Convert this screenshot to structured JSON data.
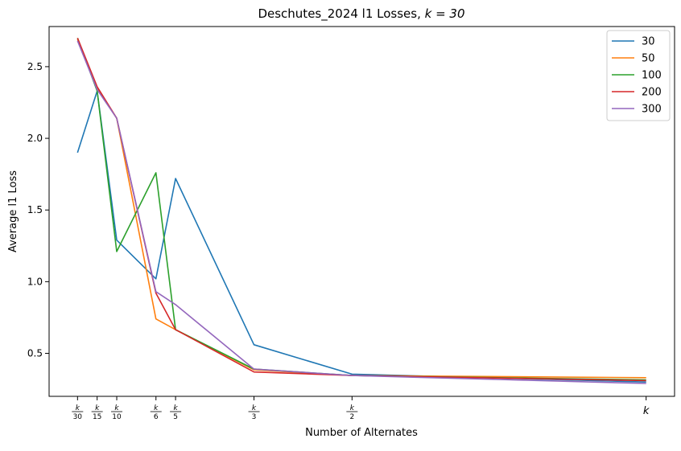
{
  "chart_data": {
    "type": "line",
    "title": "Deschutes_2024 l1 Losses, k = 30",
    "title_prefix": "Deschutes_2024 l1 Losses, ",
    "title_math": "k = 30",
    "xlabel": "Number of Alternates",
    "ylabel": "Average l1 Loss",
    "x_tick_labels": [
      {
        "num": "k",
        "den": "30"
      },
      {
        "num": "k",
        "den": "15"
      },
      {
        "num": "k",
        "den": "10"
      },
      {
        "num": "k",
        "den": "6"
      },
      {
        "num": "k",
        "den": "5"
      },
      {
        "num": "k",
        "den": "3"
      },
      {
        "num": "k",
        "den": "2"
      },
      {
        "num": "k",
        "den": ""
      }
    ],
    "x": [
      1,
      2,
      3,
      5,
      6,
      10,
      15,
      30
    ],
    "xlim": [
      -0.45,
      31.45
    ],
    "ylim": [
      0.2,
      2.78
    ],
    "yticks": [
      0.5,
      1.0,
      1.5,
      2.0,
      2.5
    ],
    "ytick_labels": [
      "0.5",
      "1.0",
      "1.5",
      "2.0",
      "2.5"
    ],
    "grid": false,
    "legend_position": "top-right",
    "series": [
      {
        "name": "30",
        "color": "#1f77b4",
        "values": [
          1.9,
          2.33,
          1.29,
          1.02,
          1.72,
          0.56,
          0.355,
          0.3
        ]
      },
      {
        "name": "50",
        "color": "#ff7f0e",
        "values": [
          2.69,
          2.35,
          2.14,
          0.74,
          0.665,
          0.385,
          0.345,
          0.33
        ]
      },
      {
        "name": "100",
        "color": "#2ca02c",
        "values": [
          2.7,
          2.33,
          1.21,
          1.76,
          0.665,
          0.39,
          0.345,
          0.315
        ]
      },
      {
        "name": "200",
        "color": "#d62728",
        "values": [
          2.7,
          2.36,
          2.14,
          0.92,
          0.665,
          0.37,
          0.345,
          0.31
        ]
      },
      {
        "name": "300",
        "color": "#9467bd",
        "values": [
          2.68,
          2.34,
          2.14,
          0.93,
          0.84,
          0.39,
          0.345,
          0.29
        ]
      }
    ]
  }
}
